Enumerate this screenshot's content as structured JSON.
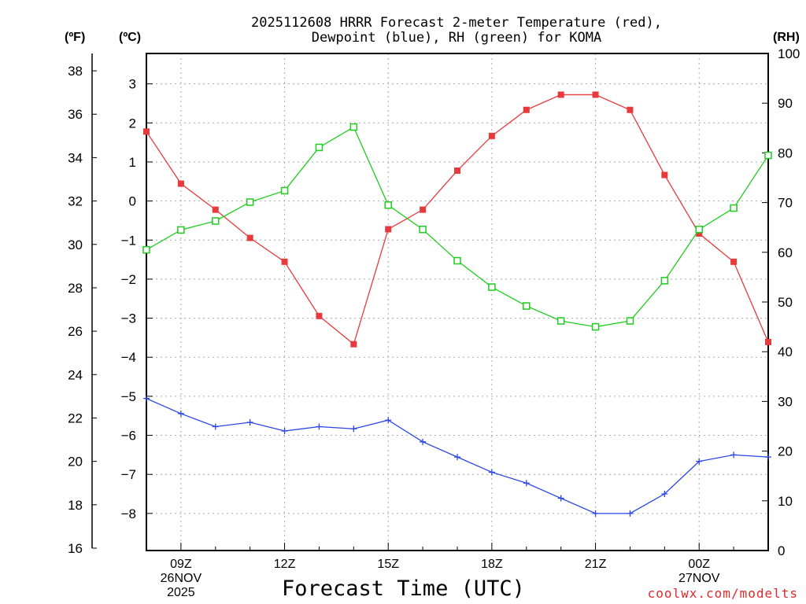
{
  "chart_data": {
    "type": "line",
    "title_line1": "2025112608 HRRR Forecast 2-meter Temperature (red),",
    "title_line2": "Dewpoint (blue), RH (green) for KOMA",
    "axis_labels": {
      "left_f": "(ºF)",
      "left_c": "(ºC)",
      "right_rh": "(RH)"
    },
    "xlabel": "Forecast Time (UTC)",
    "credit": "coolwx.com/modelts",
    "x_hours": [
      8,
      9,
      10,
      11,
      12,
      13,
      14,
      15,
      16,
      17,
      18,
      19,
      20,
      21,
      22,
      23,
      24,
      25,
      26
    ],
    "xlim": [
      8,
      26
    ],
    "x_ticks": [
      {
        "hour": 9,
        "lines": [
          "09Z",
          "26NOV",
          "2025"
        ]
      },
      {
        "hour": 12,
        "lines": [
          "12Z"
        ]
      },
      {
        "hour": 15,
        "lines": [
          "15Z"
        ]
      },
      {
        "hour": 18,
        "lines": [
          "18Z"
        ]
      },
      {
        "hour": 21,
        "lines": [
          "21Z"
        ]
      },
      {
        "hour": 24,
        "lines": [
          "00Z",
          "27NOV"
        ]
      }
    ],
    "fahrenheit_axis": {
      "ylim": [
        16,
        38.8
      ],
      "ticks": [
        "16",
        "18",
        "20",
        "22",
        "24",
        "26",
        "28",
        "30",
        "32",
        "34",
        "36",
        "38"
      ]
    },
    "celsius_axis": {
      "ylim": [
        -8.89,
        3.78
      ],
      "ticks": [
        "-8",
        "-7",
        "-6",
        "-5",
        "-4",
        "-3",
        "-2",
        "-1",
        "0",
        "1",
        "2",
        "3"
      ]
    },
    "rh_axis": {
      "ylim": [
        0,
        100
      ],
      "ticks": [
        "0",
        "10",
        "20",
        "30",
        "40",
        "50",
        "60",
        "70",
        "80",
        "90",
        "100"
      ]
    },
    "series": [
      {
        "name": "2-meter Temperature",
        "units": "F",
        "color": "#e8393c",
        "marker": "filled-square",
        "values": [
          35.2,
          32.8,
          31.6,
          30.3,
          29.2,
          26.7,
          25.4,
          30.7,
          31.6,
          33.4,
          35.0,
          36.2,
          36.9,
          36.9,
          36.2,
          33.2,
          30.5,
          29.2,
          25.5
        ]
      },
      {
        "name": "Dewpoint",
        "units": "F",
        "color": "#2a46e8",
        "marker": "plus",
        "values": [
          22.9,
          22.2,
          21.6,
          21.8,
          21.4,
          21.6,
          21.5,
          21.9,
          20.9,
          20.2,
          19.5,
          19.0,
          18.3,
          17.6,
          17.6,
          18.5,
          20.0,
          20.3,
          20.2
        ]
      },
      {
        "name": "Relative Humidity",
        "units": "%",
        "color": "#1fcc1f",
        "marker": "open-square",
        "values": [
          60.5,
          64.5,
          66.3,
          70.1,
          72.4,
          81.1,
          85.2,
          69.5,
          64.6,
          58.3,
          53.0,
          49.2,
          46.2,
          45.0,
          46.2,
          54.3,
          64.6,
          68.9,
          79.5
        ]
      }
    ]
  }
}
